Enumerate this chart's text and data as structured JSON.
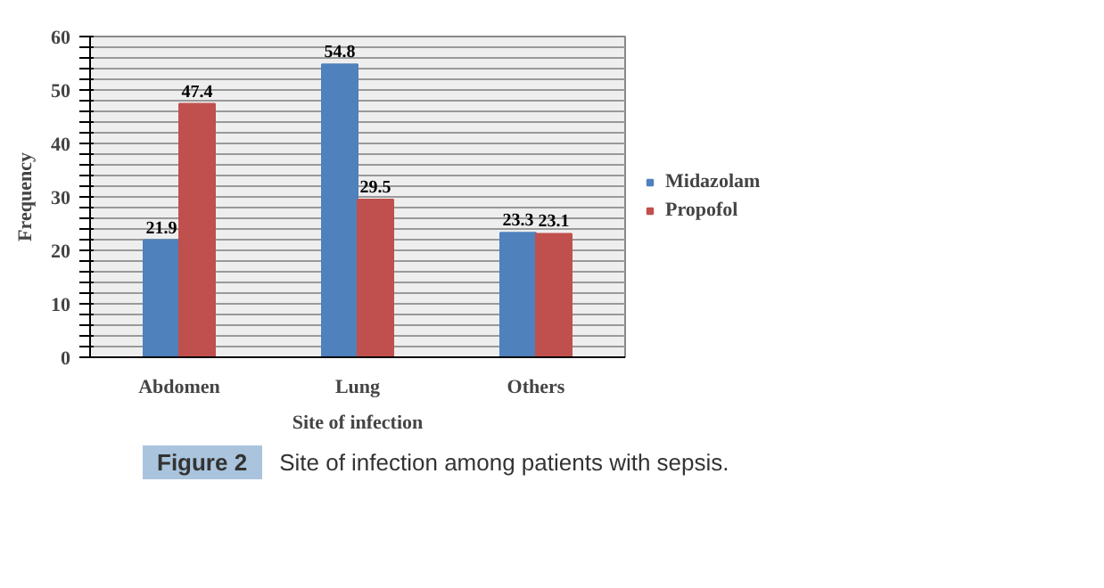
{
  "chart_data": {
    "type": "bar",
    "xlabel": "Site of infection",
    "ylabel": "Frequency",
    "categories": [
      "Abdomen",
      "Lung",
      "Others"
    ],
    "series": [
      {
        "name": "Midazolam",
        "color": "#4f81bd",
        "values": [
          21.9,
          54.8,
          23.3
        ]
      },
      {
        "name": "Propofol",
        "color": "#c0504d",
        "values": [
          47.4,
          29.5,
          23.1
        ]
      }
    ],
    "ylim": [
      0,
      60
    ],
    "yticks": [
      0,
      {
        "value": 2,
        "label": null
      },
      {
        "value": 4,
        "label": null
      },
      {
        "value": 6,
        "label": null
      },
      {
        "value": 8,
        "label": null
      },
      10,
      {
        "value": 12,
        "label": null
      },
      {
        "value": 14,
        "label": null
      },
      {
        "value": 16,
        "label": null
      },
      {
        "value": 18,
        "label": null
      },
      20,
      {
        "value": 22,
        "label": null
      },
      {
        "value": 24,
        "label": null
      },
      {
        "value": 26,
        "label": null
      },
      {
        "value": 28,
        "label": null
      },
      30,
      {
        "value": 32,
        "label": null
      },
      {
        "value": 34,
        "label": null
      },
      {
        "value": 36,
        "label": null
      },
      {
        "value": 38,
        "label": null
      },
      40,
      {
        "value": 42,
        "label": null
      },
      {
        "value": 44,
        "label": null
      },
      {
        "value": 46,
        "label": null
      },
      {
        "value": 48,
        "label": null
      },
      50,
      {
        "value": 52,
        "label": null
      },
      {
        "value": 54,
        "label": null
      },
      {
        "value": 56,
        "label": null
      },
      {
        "value": 58,
        "label": null
      },
      60
    ],
    "grid": "y",
    "legend": "right",
    "data_labels": true,
    "annotations": [
      "Figure 2",
      "Site of infection among patients with sepsis."
    ]
  }
}
